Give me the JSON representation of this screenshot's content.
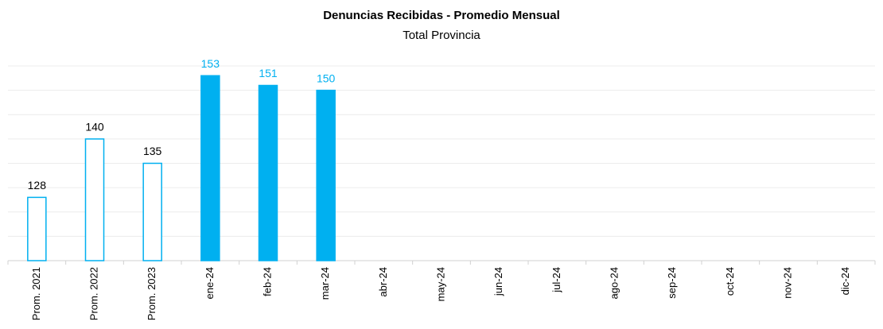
{
  "chart_data": {
    "type": "bar",
    "title": "Denuncias Recibidas - Promedio Mensual",
    "subtitle": "Total Provincia",
    "categories": [
      "Prom. 2021",
      "Prom. 2022",
      "Prom. 2023",
      "ene-24",
      "feb-24",
      "mar-24",
      "abr-24",
      "may-24",
      "jun-24",
      "jul-24",
      "ago-24",
      "sep-24",
      "oct-24",
      "nov-24",
      "dic-24"
    ],
    "values": [
      128,
      140,
      135,
      153,
      151,
      150,
      null,
      null,
      null,
      null,
      null,
      null,
      null,
      null,
      null
    ],
    "color": "#00b0f0",
    "fill_colors": [
      "#ffffff",
      "#ffffff",
      "#ffffff",
      "#00b0f0",
      "#00b0f0",
      "#00b0f0",
      null,
      null,
      null,
      null,
      null,
      null,
      null,
      null,
      null
    ],
    "label_colors": [
      "#000000",
      "#000000",
      "#000000",
      "#00b0f0",
      "#00b0f0",
      "#00b0f0",
      null,
      null,
      null,
      null,
      null,
      null,
      null,
      null,
      null
    ],
    "ylim": [
      115,
      155
    ],
    "yticks": [
      115,
      120,
      125,
      130,
      135,
      140,
      145,
      150,
      155
    ],
    "grid": true
  }
}
